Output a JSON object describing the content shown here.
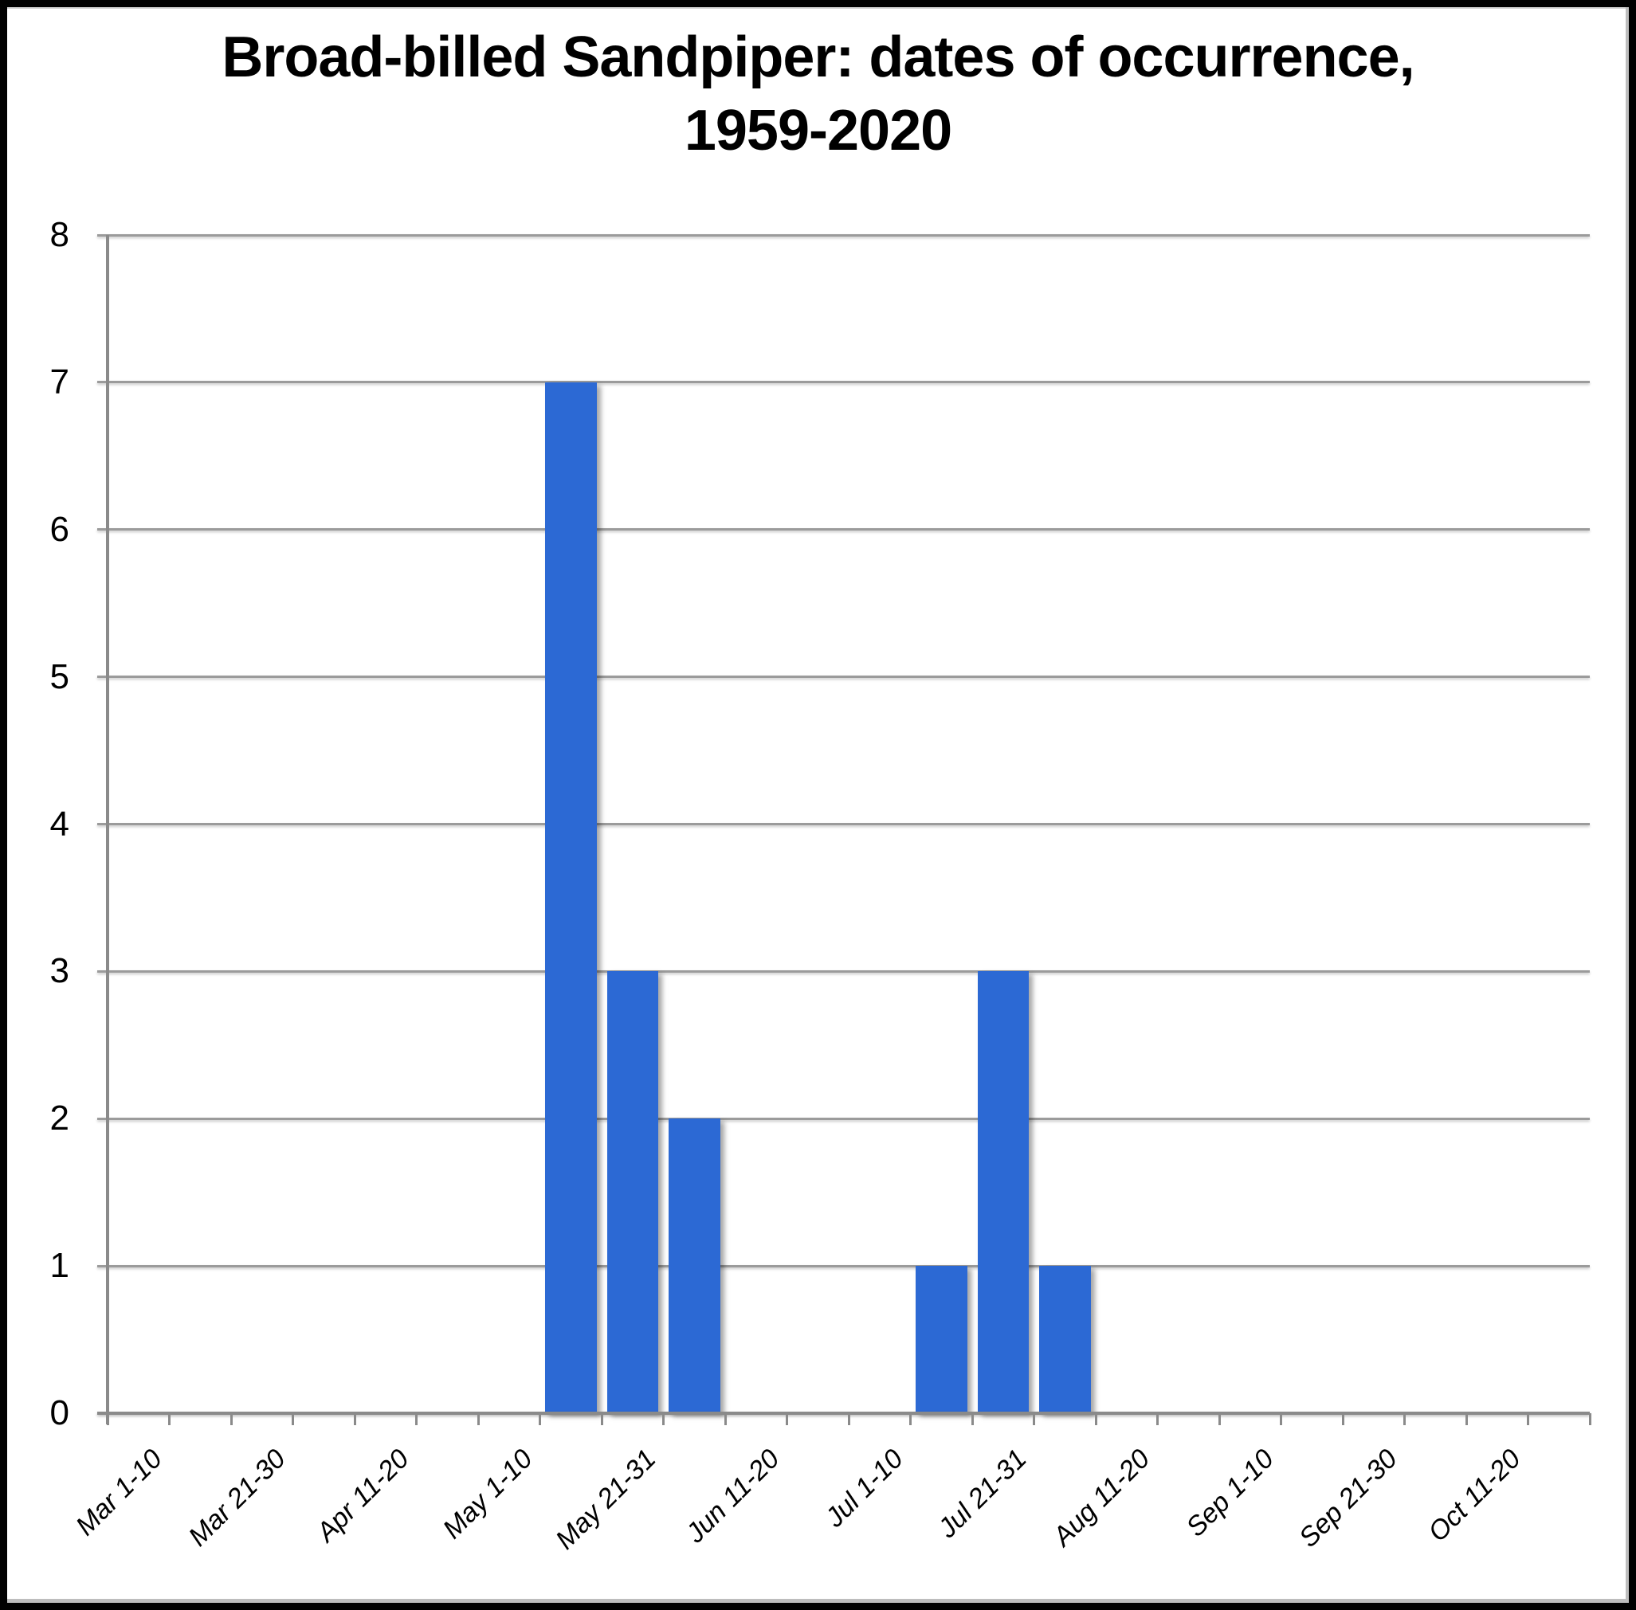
{
  "title": {
    "line1": "Broad-billed Sandpiper: dates of occurrence,",
    "line2": "1959-2020"
  },
  "chart_data": {
    "type": "bar",
    "title": "Broad-billed Sandpiper: dates of occurrence, 1959-2020",
    "categories": [
      "Mar 1-10",
      "Mar 11-20",
      "Mar 21-30",
      "Apr 1-10",
      "Apr 11-20",
      "Apr 21-30",
      "May 1-10",
      "May 11-20",
      "May 21-31",
      "Jun 1-10",
      "Jun 11-20",
      "Jun 21-30",
      "Jul 1-10",
      "Jul 11-20",
      "Jul 21-31",
      "Aug 1-10",
      "Aug 11-20",
      "Aug 21-31",
      "Sep 1-10",
      "Sep 11-20",
      "Sep 21-30",
      "Oct 1-10",
      "Oct 11-20",
      "Oct 21-31"
    ],
    "values": [
      0,
      0,
      0,
      0,
      0,
      0,
      0,
      7,
      3,
      2,
      0,
      0,
      0,
      1,
      3,
      1,
      0,
      0,
      0,
      0,
      0,
      0,
      0,
      0
    ],
    "visible_x_tick_labels": [
      "Mar 1-10",
      "Mar 21-30",
      "Apr 11-20",
      "May 1-10",
      "May 21-31",
      "Jun 11-20",
      "Jul 1-10",
      "Jul 21-31",
      "Aug 11-20",
      "Sep 1-10",
      "Sep 21-30",
      "Oct 11-20"
    ],
    "xlabel": "",
    "ylabel": "",
    "ylim": [
      0,
      8
    ],
    "y_ticks": [
      0,
      1,
      2,
      3,
      4,
      5,
      6,
      7,
      8
    ],
    "grid": true,
    "legend": false,
    "colors": {
      "bar": "#2c69d4",
      "gridline": "#9b9b9b",
      "axis": "#8a8a8a",
      "text": "#000000",
      "background": "#ffffff",
      "frame_border": "#000000",
      "frame_inner": "#bdbdbd"
    }
  }
}
